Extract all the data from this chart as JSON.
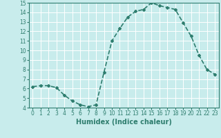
{
  "x": [
    0,
    1,
    2,
    3,
    4,
    5,
    6,
    7,
    8,
    9,
    10,
    11,
    12,
    13,
    14,
    15,
    16,
    17,
    18,
    19,
    20,
    21,
    22,
    23
  ],
  "y": [
    6.2,
    6.3,
    6.3,
    6.1,
    5.3,
    4.7,
    4.3,
    4.1,
    4.3,
    7.7,
    11.0,
    12.3,
    13.5,
    14.1,
    14.3,
    15.0,
    14.7,
    14.5,
    14.3,
    12.9,
    11.5,
    9.5,
    8.0,
    7.5
  ],
  "line_color": "#2e7d6e",
  "marker": "D",
  "marker_size": 2.0,
  "bg_color": "#c8ecec",
  "grid_color": "#ffffff",
  "axis_color": "#2e7d6e",
  "xlabel": "Humidex (Indice chaleur)",
  "ylim": [
    4,
    15
  ],
  "xlim": [
    -0.5,
    23.5
  ],
  "yticks": [
    4,
    5,
    6,
    7,
    8,
    9,
    10,
    11,
    12,
    13,
    14,
    15
  ],
  "xticks": [
    0,
    1,
    2,
    3,
    4,
    5,
    6,
    7,
    8,
    9,
    10,
    11,
    12,
    13,
    14,
    15,
    16,
    17,
    18,
    19,
    20,
    21,
    22,
    23
  ],
  "tick_label_fontsize": 5.5,
  "xlabel_fontsize": 7.0,
  "linewidth": 1.2,
  "linestyle": "--"
}
